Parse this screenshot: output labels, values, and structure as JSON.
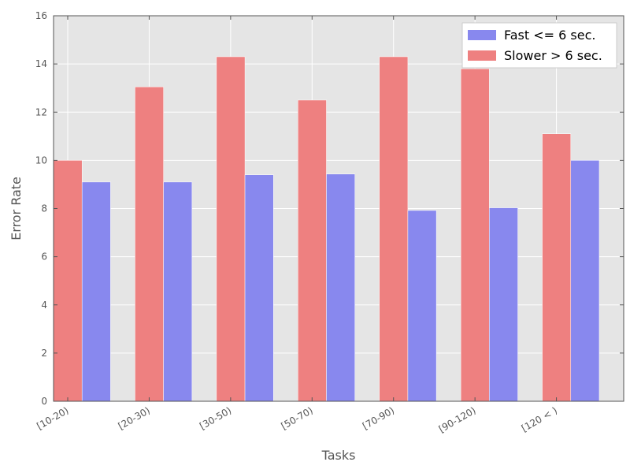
{
  "chart_data": {
    "type": "bar",
    "title": "",
    "xlabel": "Tasks",
    "ylabel": "Error Rate",
    "categories": [
      "[10-20)",
      "[20-30)",
      "[30-50)",
      "[50-70)",
      "[70-90)",
      "[90-120)",
      "[120 < )"
    ],
    "series": [
      {
        "name": "Slower > 6 sec.",
        "color": "#ee8080",
        "values": [
          10.0,
          13.05,
          14.3,
          12.5,
          14.3,
          13.8,
          11.1
        ]
      },
      {
        "name": "Fast <= 6 sec.",
        "color": "#8888ee",
        "values": [
          9.1,
          9.1,
          9.4,
          9.43,
          7.92,
          8.03,
          10.0
        ]
      }
    ],
    "ylim": [
      0,
      16
    ],
    "yticks": [
      "0",
      "2",
      "4",
      "6",
      "8",
      "10",
      "12",
      "14",
      "16"
    ],
    "grid": true,
    "legend": {
      "position": "top-right",
      "entries": [
        {
          "label": "Fast <= 6 sec.",
          "color": "#8888ee"
        },
        {
          "label": "Slower > 6 sec.",
          "color": "#ee8080"
        }
      ]
    },
    "background": "#e5e5e5"
  }
}
